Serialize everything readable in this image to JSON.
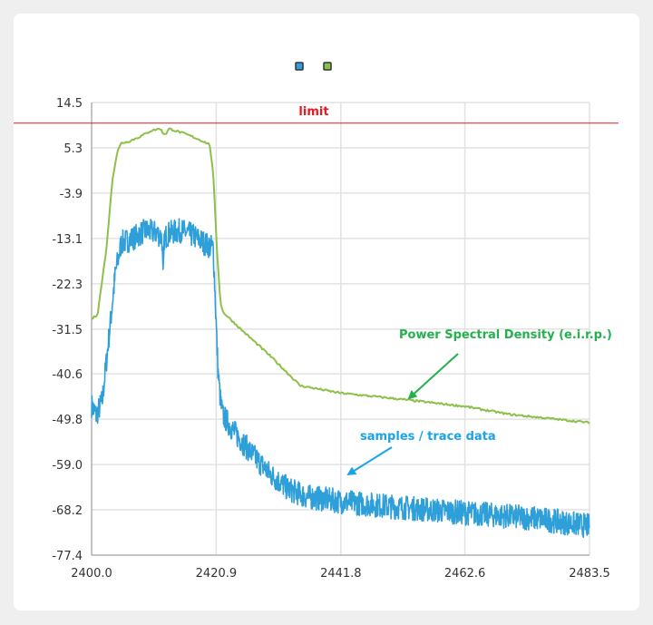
{
  "chart_data": {
    "type": "line",
    "title": "",
    "xlabel": "",
    "ylabel": "",
    "xlim": [
      2400.0,
      2483.5
    ],
    "ylim": [
      -77.4,
      14.5
    ],
    "x_ticks": [
      "2400.0",
      "2420.9",
      "2441.8",
      "2462.6",
      "2483.5"
    ],
    "y_ticks": [
      "14.5",
      "5.3",
      "-3.9",
      "-13.1",
      "-22.3",
      "-31.5",
      "-40.6",
      "-49.8",
      "-59.0",
      "-68.2",
      "-77.4"
    ],
    "grid": true,
    "legend": {
      "placement": "top-center",
      "markers": [
        {
          "color": "#2e9fd8"
        },
        {
          "color": "#8dc04a"
        }
      ]
    },
    "limit": {
      "label": "limit",
      "value": 10.3,
      "color": "#e8191e"
    },
    "series": [
      {
        "color": "#8dc04a",
        "x": [
          2400,
          2401,
          2402.5,
          2403.5,
          2404.3,
          2405,
          2406,
          2408,
          2410,
          2411.5,
          2412,
          2412.5,
          2413,
          2414,
          2416,
          2418,
          2419.8,
          2420.4,
          2421,
          2421.6,
          2422,
          2425,
          2430,
          2435,
          2441.8,
          2450,
          2462.6,
          2470,
          2483.5
        ],
        "y": [
          -29.5,
          -28.5,
          -15,
          -1,
          4.5,
          6.3,
          6.5,
          7.5,
          8.8,
          9.2,
          8.2,
          8.2,
          9.2,
          8.8,
          8.0,
          7.0,
          6.0,
          0,
          -15,
          -26,
          -28,
          -31.5,
          -37,
          -43,
          -44.5,
          -45.5,
          -47.2,
          -48.8,
          -50.5
        ]
      },
      {
        "color": "#2e9fd8",
        "noise_db": 2.5,
        "x": [
          2400,
          2400.8,
          2401.8,
          2403,
          2404,
          2405,
          2407,
          2409,
          2411,
          2411.8,
          2412,
          2412.2,
          2413,
          2415,
          2417,
          2419.5,
          2420.4,
          2421.2,
          2421.6,
          2422,
          2424,
          2427,
          2430,
          2433,
          2436,
          2441.8,
          2450,
          2462.6,
          2475,
          2483.5
        ],
        "y": [
          -47,
          -49,
          -46,
          -32,
          -20,
          -14,
          -13,
          -11.5,
          -12,
          -13,
          -22,
          -13,
          -12,
          -11.5,
          -12.5,
          -14.5,
          -15,
          -40,
          -46,
          -49,
          -52.5,
          -57,
          -61,
          -64,
          -65.5,
          -66.5,
          -67.5,
          -68.8,
          -70,
          -71.5
        ]
      }
    ],
    "annotations": [
      {
        "text": "Power Spectral Density (e.i.r.p.)",
        "color": "#22b14c"
      },
      {
        "text": "samples / trace data",
        "color": "#1aa3e8"
      }
    ]
  }
}
